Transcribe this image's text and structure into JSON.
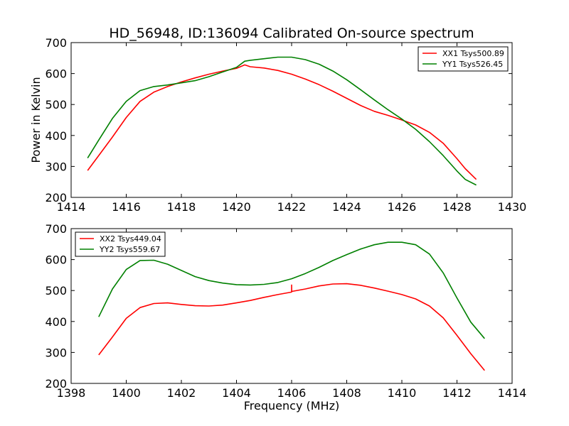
{
  "figure": {
    "title": "HD_56948, ID:136094 Calibrated On-source spectrum",
    "xlabel": "Frequency (MHz)",
    "ylabel": "Power in Kelvin"
  },
  "chart_data": [
    {
      "type": "line",
      "title": "HD_56948, ID:136094 Calibrated On-source spectrum",
      "xlabel": "",
      "ylabel": "Power in Kelvin",
      "xlim": [
        1414,
        1430
      ],
      "ylim": [
        200,
        700
      ],
      "xticks": [
        "1414",
        "1416",
        "1418",
        "1420",
        "1422",
        "1424",
        "1426",
        "1428",
        "1430"
      ],
      "yticks": [
        "200",
        "300",
        "400",
        "500",
        "600",
        "700"
      ],
      "legend_position": "top-right",
      "grid": false,
      "series": [
        {
          "name": "XX1 Tsys500.89",
          "color": "#ff0000",
          "x": [
            1414.6,
            1415,
            1415.5,
            1416,
            1416.5,
            1417,
            1417.5,
            1418,
            1418.5,
            1419,
            1419.5,
            1420,
            1420.3,
            1420.5,
            1421,
            1421.5,
            1422,
            1422.5,
            1423,
            1423.5,
            1424,
            1424.5,
            1425,
            1425.5,
            1426,
            1426.5,
            1427,
            1427.5,
            1428,
            1428.3,
            1428.7
          ],
          "y": [
            287,
            335,
            395,
            458,
            510,
            540,
            558,
            573,
            586,
            598,
            608,
            617,
            628,
            622,
            618,
            610,
            598,
            582,
            564,
            543,
            520,
            497,
            478,
            465,
            450,
            434,
            410,
            375,
            325,
            293,
            258
          ]
        },
        {
          "name": "YY1 Tsys526.45",
          "color": "#008000",
          "x": [
            1414.6,
            1415,
            1415.5,
            1416,
            1416.5,
            1417,
            1417.5,
            1418,
            1418.5,
            1419,
            1419.5,
            1420,
            1420.3,
            1420.5,
            1421,
            1421.5,
            1422,
            1422.5,
            1423,
            1423.5,
            1424,
            1424.5,
            1425,
            1425.5,
            1426,
            1426.5,
            1427,
            1427.5,
            1428,
            1428.3,
            1428.7
          ],
          "y": [
            327,
            385,
            455,
            510,
            545,
            558,
            563,
            570,
            577,
            590,
            605,
            620,
            640,
            643,
            648,
            653,
            653,
            645,
            630,
            608,
            580,
            548,
            515,
            483,
            453,
            420,
            380,
            335,
            285,
            258,
            240
          ]
        }
      ]
    },
    {
      "type": "line",
      "title": "",
      "xlabel": "Frequency (MHz)",
      "ylabel": "",
      "xlim": [
        1398,
        1414
      ],
      "ylim": [
        200,
        700
      ],
      "xticks": [
        "1398",
        "1400",
        "1402",
        "1404",
        "1406",
        "1408",
        "1410",
        "1412",
        "1414"
      ],
      "yticks": [
        "200",
        "300",
        "400",
        "500",
        "600",
        "700"
      ],
      "legend_position": "top-left",
      "grid": false,
      "series": [
        {
          "name": "XX2 Tsys449.04",
          "color": "#ff0000",
          "x": [
            1399,
            1399.5,
            1400,
            1400.5,
            1401,
            1401.5,
            1402,
            1402.5,
            1403,
            1403.5,
            1404,
            1404.5,
            1405,
            1405.5,
            1406,
            1406.001,
            1406.002,
            1406.5,
            1407,
            1407.5,
            1408,
            1408.5,
            1409,
            1409.5,
            1410,
            1410.5,
            1411,
            1411.5,
            1412,
            1412.5,
            1413
          ],
          "y": [
            292,
            350,
            410,
            445,
            458,
            460,
            455,
            451,
            450,
            453,
            460,
            468,
            478,
            487,
            495,
            518,
            497,
            505,
            515,
            521,
            522,
            517,
            508,
            498,
            487,
            473,
            450,
            412,
            355,
            296,
            242
          ]
        },
        {
          "name": "YY2 Tsys559.67",
          "color": "#008000",
          "x": [
            1399,
            1399.5,
            1400,
            1400.5,
            1401,
            1401.5,
            1402,
            1402.5,
            1403,
            1403.5,
            1404,
            1404.5,
            1405,
            1405.5,
            1406,
            1406.5,
            1407,
            1407.5,
            1408,
            1408.5,
            1409,
            1409.5,
            1410,
            1410.5,
            1411,
            1411.5,
            1412,
            1412.5,
            1413
          ],
          "y": [
            415,
            505,
            568,
            597,
            598,
            585,
            565,
            545,
            532,
            524,
            519,
            518,
            520,
            526,
            538,
            555,
            575,
            597,
            616,
            634,
            648,
            656,
            656,
            648,
            618,
            557,
            476,
            398,
            345
          ]
        }
      ]
    }
  ]
}
